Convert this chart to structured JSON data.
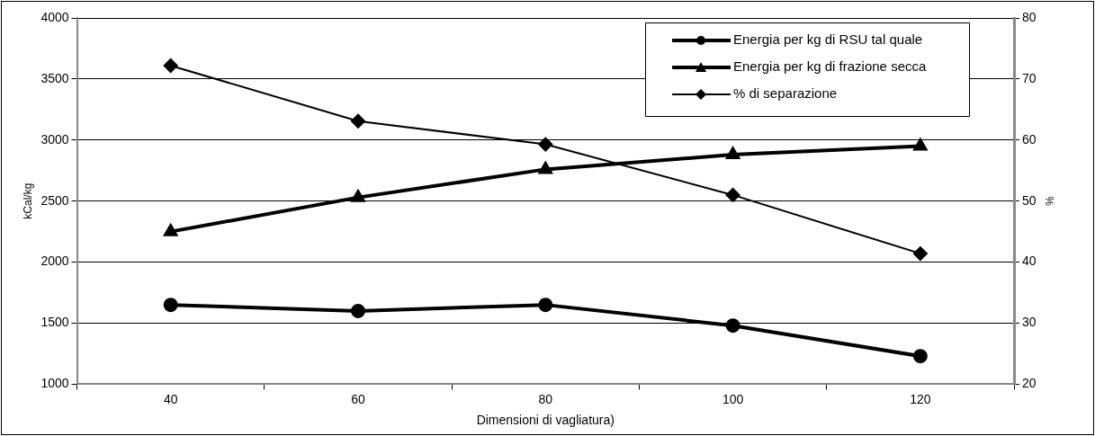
{
  "chart_data": {
    "type": "line",
    "xlabel": "Dimensioni di vagliatura)",
    "ylabel": "kCal/kg",
    "y2label": "%",
    "categories": [
      "40",
      "60",
      "80",
      "100",
      "120"
    ],
    "series": [
      {
        "name": "Energia per kg di RSU tal quale",
        "color": "#000000",
        "marker": "circle",
        "values": [
          1650,
          1600,
          1650,
          1480,
          1230
        ]
      },
      {
        "name": "Energia per kg di frazione secca",
        "color": "#000000",
        "marker": "triangle",
        "values": [
          2250,
          2530,
          2760,
          2880,
          2950
        ]
      },
      {
        "name": "% di separazione",
        "color": "#000000",
        "marker": "diamond",
        "axis": "y2",
        "values": [
          72.2,
          63.1,
          59.3,
          51,
          41.4
        ]
      }
    ],
    "ylim": [
      1000,
      4000
    ],
    "yticks": [
      1000,
      1500,
      2000,
      2500,
      3000,
      3500,
      4000
    ],
    "y2lim": [
      20,
      80
    ],
    "y2ticks": [
      20,
      30,
      40,
      50,
      60,
      70,
      80
    ],
    "grid": "y",
    "legend": "top right",
    "line_style": "solid"
  }
}
